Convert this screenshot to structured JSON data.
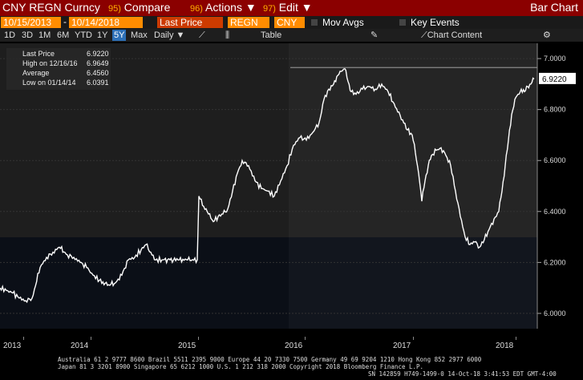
{
  "titlebar": {
    "title": "CNY REGN Curncy",
    "menu": [
      {
        "num": "95)",
        "label": "Compare"
      },
      {
        "num": "96)",
        "label": "Actions ▼"
      },
      {
        "num": "97)",
        "label": "Edit ▼"
      }
    ],
    "right_label": "Bar Chart"
  },
  "controls": {
    "start_date": "10/15/2013",
    "end_date": "10/14/2018",
    "price_field": "Last Price",
    "security1": "REGN",
    "security2": "CNY",
    "mov_avgs": "Mov Avgs",
    "key_events": "Key Events"
  },
  "toolbar": {
    "periods": [
      "1D",
      "3D",
      "1M",
      "6M",
      "YTD",
      "1Y",
      "5Y",
      "Max"
    ],
    "active_period": "5Y",
    "frequency": "Daily ▼",
    "table_label": "Table",
    "chart_content": "Chart Content"
  },
  "legend": {
    "last_price_label": "Last Price",
    "last_price": "6.9220",
    "high_label": "High on 12/16/16",
    "high": "6.9649",
    "average_label": "Average",
    "average": "6.4560",
    "low_label": "Low on 01/14/14",
    "low": "6.0391"
  },
  "chart_data": {
    "type": "line",
    "yticks": [
      "7.0000",
      "6.8000",
      "6.6000",
      "6.4000",
      "6.2000",
      "6.0000"
    ],
    "ylim": [
      5.94,
      7.06
    ],
    "xlabels": [
      "2013",
      "2014",
      "2015",
      "2016",
      "2017",
      "2018"
    ],
    "last_value_label": "6.9220",
    "high_line": 6.9649,
    "series": [
      {
        "points": [
          [
            0,
            6.1
          ],
          [
            8,
            6.09
          ],
          [
            16,
            6.08
          ],
          [
            24,
            6.06
          ],
          [
            32,
            6.05
          ],
          [
            40,
            6.06
          ],
          [
            50,
            6.18
          ],
          [
            58,
            6.22
          ],
          [
            66,
            6.24
          ],
          [
            74,
            6.26
          ],
          [
            84,
            6.23
          ],
          [
            92,
            6.22
          ],
          [
            100,
            6.2
          ],
          [
            108,
            6.18
          ],
          [
            116,
            6.15
          ],
          [
            124,
            6.13
          ],
          [
            134,
            6.11
          ],
          [
            144,
            6.12
          ],
          [
            152,
            6.15
          ],
          [
            160,
            6.21
          ],
          [
            168,
            6.22
          ],
          [
            176,
            6.25
          ],
          [
            182,
            6.27
          ],
          [
            188,
            6.24
          ],
          [
            194,
            6.21
          ],
          [
            202,
            6.21
          ],
          [
            212,
            6.21
          ],
          [
            222,
            6.21
          ],
          [
            234,
            6.21
          ],
          [
            246,
            6.21
          ],
          [
            248,
            6.46
          ],
          [
            254,
            6.42
          ],
          [
            260,
            6.39
          ],
          [
            266,
            6.36
          ],
          [
            272,
            6.38
          ],
          [
            278,
            6.39
          ],
          [
            284,
            6.41
          ],
          [
            290,
            6.48
          ],
          [
            296,
            6.55
          ],
          [
            302,
            6.6
          ],
          [
            310,
            6.58
          ],
          [
            318,
            6.52
          ],
          [
            326,
            6.49
          ],
          [
            334,
            6.48
          ],
          [
            342,
            6.46
          ],
          [
            350,
            6.52
          ],
          [
            358,
            6.58
          ],
          [
            366,
            6.66
          ],
          [
            374,
            6.69
          ],
          [
            382,
            6.68
          ],
          [
            390,
            6.71
          ],
          [
            398,
            6.75
          ],
          [
            404,
            6.84
          ],
          [
            410,
            6.88
          ],
          [
            416,
            6.9
          ],
          [
            420,
            6.93
          ],
          [
            424,
            6.95
          ],
          [
            430,
            6.96
          ],
          [
            434,
            6.91
          ],
          [
            438,
            6.87
          ],
          [
            444,
            6.86
          ],
          [
            452,
            6.88
          ],
          [
            460,
            6.89
          ],
          [
            468,
            6.88
          ],
          [
            476,
            6.9
          ],
          [
            484,
            6.87
          ],
          [
            490,
            6.83
          ],
          [
            496,
            6.79
          ],
          [
            502,
            6.76
          ],
          [
            508,
            6.72
          ],
          [
            514,
            6.7
          ],
          [
            518,
            6.63
          ],
          [
            522,
            6.55
          ],
          [
            526,
            6.44
          ],
          [
            530,
            6.52
          ],
          [
            534,
            6.58
          ],
          [
            538,
            6.62
          ],
          [
            544,
            6.64
          ],
          [
            550,
            6.65
          ],
          [
            556,
            6.62
          ],
          [
            562,
            6.58
          ],
          [
            568,
            6.48
          ],
          [
            574,
            6.38
          ],
          [
            580,
            6.3
          ],
          [
            586,
            6.27
          ],
          [
            592,
            6.28
          ],
          [
            598,
            6.26
          ],
          [
            604,
            6.29
          ],
          [
            610,
            6.33
          ],
          [
            616,
            6.37
          ],
          [
            622,
            6.4
          ],
          [
            626,
            6.48
          ],
          [
            630,
            6.58
          ],
          [
            634,
            6.68
          ],
          [
            638,
            6.78
          ],
          [
            642,
            6.84
          ],
          [
            646,
            6.86
          ],
          [
            650,
            6.88
          ],
          [
            654,
            6.87
          ],
          [
            658,
            6.89
          ],
          [
            662,
            6.9
          ],
          [
            666,
            6.92
          ]
        ]
      }
    ]
  },
  "footer": {
    "line1": "Australia 61 2 9777 8600 Brazil 5511 2395 9000 Europe 44 20 7330 7500 Germany 49 69 9204 1210 Hong Kong 852 2977 6000",
    "line2": "Japan 81 3 3201 8900        Singapore 65 6212 1000        U.S. 1 212 318 2000        Copyright 2018 Bloomberg Finance L.P.",
    "line3": "SN 142859 H749-1499-0 14-Oct-18   3:41:53 EDT  GMT-4:00"
  },
  "colors": {
    "titlebar": "#8b0000",
    "field": "#ff8c00",
    "accent": "#2c6fb6"
  }
}
